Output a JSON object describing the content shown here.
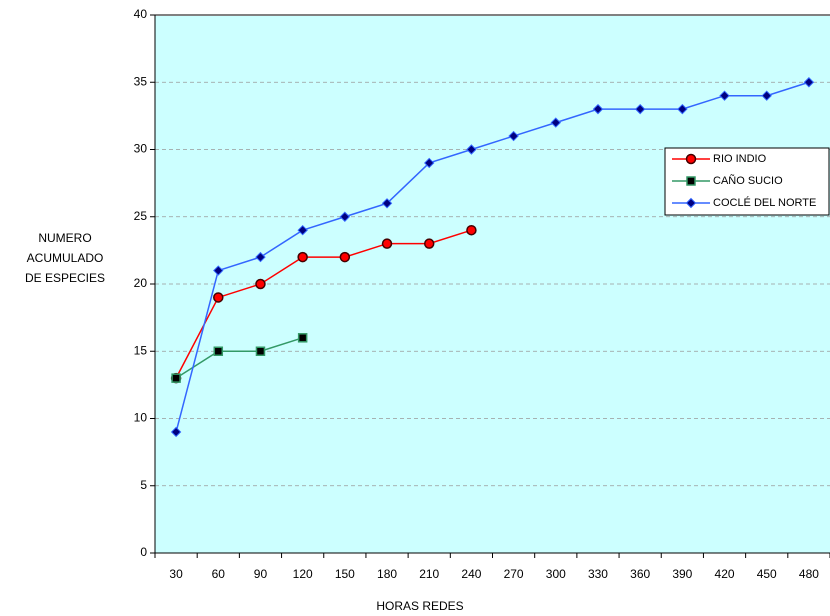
{
  "chart_data": {
    "type": "line",
    "categories": [
      "30",
      "60",
      "90",
      "120",
      "150",
      "180",
      "210",
      "240",
      "270",
      "300",
      "330",
      "360",
      "390",
      "420",
      "450",
      "480"
    ],
    "series": [
      {
        "name": "RIO INDIO",
        "color": "#ff0000",
        "marker": "circle",
        "values": [
          13,
          19,
          20,
          22,
          22,
          23,
          23,
          24,
          null,
          null,
          null,
          null,
          null,
          null,
          null,
          null
        ]
      },
      {
        "name": "CAÑO SUCIO",
        "color": "#339966",
        "marker": "square",
        "values": [
          13,
          15,
          15,
          16,
          null,
          null,
          null,
          null,
          null,
          null,
          null,
          null,
          null,
          null,
          null,
          null
        ]
      },
      {
        "name": "COCLÉ DEL NORTE",
        "color": "#3366ff",
        "marker": "diamond",
        "values": [
          9,
          21,
          22,
          24,
          25,
          26,
          29,
          30,
          31,
          32,
          33,
          33,
          33,
          34,
          34,
          35
        ]
      }
    ],
    "ylim": [
      0,
      40
    ],
    "yticks": [
      0,
      5,
      10,
      15,
      20,
      25,
      30,
      35,
      40
    ],
    "grid": true,
    "xlabel": "HORAS REDES",
    "ylabel": [
      "NUMERO",
      "ACUMULADO",
      "DE  ESPECIES"
    ],
    "legend": "right"
  }
}
